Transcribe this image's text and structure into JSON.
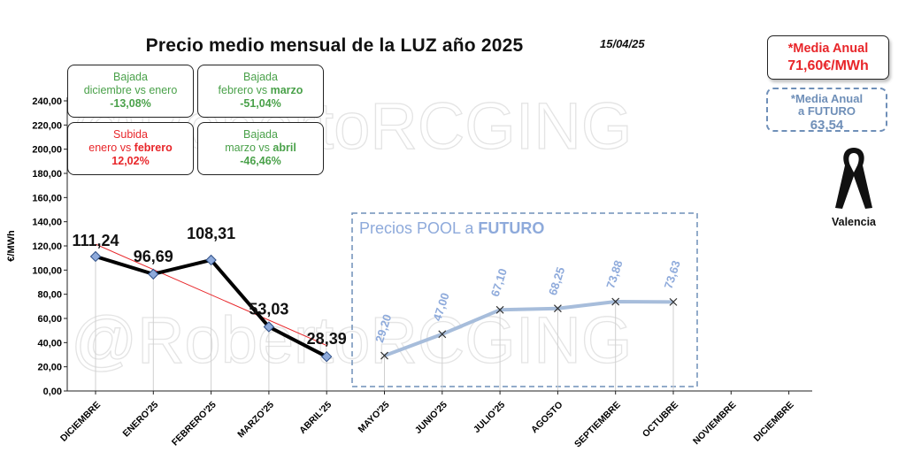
{
  "header": {
    "title": "Precio medio mensual de la LUZ año 2025",
    "date": "15/04/25"
  },
  "watermark": "@RobertoRCGING",
  "stats": [
    {
      "line1": "Bajada",
      "line2_pre": "diciembre vs enero",
      "line2_bold": "",
      "value": "-13,08%",
      "color": "green"
    },
    {
      "line1": "Bajada",
      "line2_pre": "febrero vs ",
      "line2_bold": "marzo",
      "value": "-51,04%",
      "color": "green"
    },
    {
      "line1": "Subida",
      "line2_pre": "enero vs ",
      "line2_bold": "febrero",
      "value": "12,02%",
      "color": "red"
    },
    {
      "line1": "Bajada",
      "line2_pre": "marzo vs ",
      "line2_bold": "abril",
      "value": "-46,46%",
      "color": "green"
    }
  ],
  "media_anual": {
    "label": "*Media Anual",
    "value": "71,60€/MWh"
  },
  "media_futuro": {
    "label1": "*Media Anual",
    "label2": "a FUTURO",
    "value": "63,54"
  },
  "ribbon_label": "Valencia",
  "futuro_panel": {
    "label_pre": "Precios POOL a ",
    "label_bold": "FUTURO"
  },
  "colors": {
    "actual_line": "#000000",
    "futuro_line": "#a7bddb",
    "trend": "#e8262a",
    "marker": "#8eaadb",
    "futuro_text": "#8eaadb",
    "green": "#4aa14a",
    "red": "#e8262a"
  },
  "chart_data": {
    "type": "line",
    "ylabel": "€/MWh",
    "ylim": [
      0,
      240
    ],
    "yticks": [
      "0,00",
      "20,00",
      "40,00",
      "60,00",
      "80,00",
      "100,00",
      "120,00",
      "140,00",
      "160,00",
      "180,00",
      "200,00",
      "220,00",
      "240,00"
    ],
    "categories": [
      "DICIEMBRE",
      "ENERO'25",
      "FEBRERO'25",
      "MARZO'25",
      "ABRIL'25",
      "MAYO'25",
      "JUNIO'25",
      "JULIO'25",
      "AGOSTO",
      "SEPTIEMBRE",
      "OCTUBRE",
      "NOVIEMBRE",
      "DICIEMBRE"
    ],
    "series": [
      {
        "values": [
          111.24,
          96.69,
          108.31,
          53.03,
          28.39,
          null,
          null,
          null,
          null,
          null,
          null,
          null,
          null
        ],
        "labels": [
          "111,24",
          "96,69",
          "108,31",
          "53,03",
          "28,39"
        ]
      },
      {
        "values": [
          null,
          null,
          null,
          null,
          null,
          29.2,
          47.0,
          67.1,
          68.25,
          73.88,
          73.63,
          null,
          null
        ],
        "labels": [
          "29,20",
          "47,00",
          "67,10",
          "68,25",
          "73,88",
          "73,63"
        ]
      }
    ],
    "grid": false
  }
}
